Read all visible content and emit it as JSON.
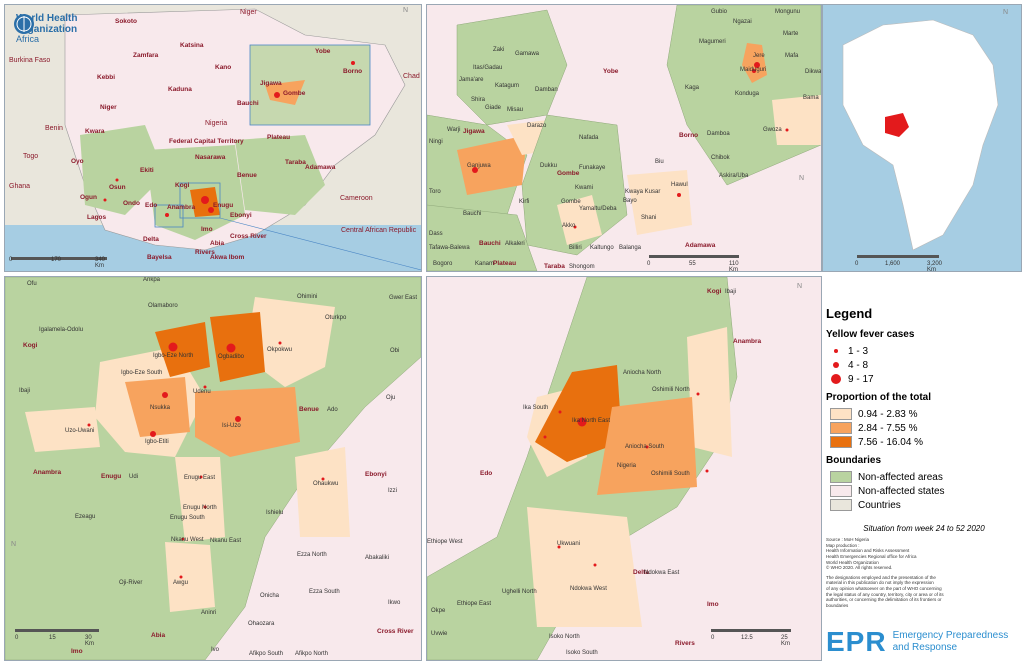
{
  "header": {
    "org_line1": "World Health",
    "org_line2": "Organization",
    "org_region": "Africa",
    "org_sub": "REGIONAL OFFICE FOR Africa"
  },
  "panel1": {
    "labels": [
      "Niger",
      "Burkina Faso",
      "Chad",
      "Benin",
      "Togo",
      "Ghana",
      "Nigeria",
      "Cameroon",
      "Central African Republic",
      "Sokoto",
      "Zamfara",
      "Katsina",
      "Kano",
      "Jigawa",
      "Yobe",
      "Borno",
      "Kebbi",
      "Kaduna",
      "Bauchi",
      "Gombe",
      "Plateau",
      "Federal Capital Territory",
      "Nasarawa",
      "Taraba",
      "Adamawa",
      "Kwara",
      "Niger",
      "Oyo",
      "Osun",
      "Ekiti",
      "Kogi",
      "Benue",
      "Ogun",
      "Ondo",
      "Edo",
      "Lagos",
      "Delta",
      "Anambra",
      "Enugu",
      "Ebonyi",
      "Imo",
      "Cross River",
      "Rivers",
      "Akwa Ibom",
      "Bayelsa",
      "Abia"
    ],
    "scale": [
      "0",
      "170",
      "340 Km"
    ]
  },
  "panel2": {
    "labels": [
      "Gubio",
      "Mongunu",
      "Ngazai",
      "Magumeri",
      "Marte",
      "Mafa",
      "Jere",
      "Maiduguri",
      "Dikwa",
      "Kaga",
      "Konduga",
      "Bama",
      "Gwoza",
      "Damboa",
      "Chibok",
      "Askira/Uba",
      "Biu",
      "Hawul",
      "Kwaya Kusar",
      "Bayo",
      "Shani",
      "Zaki",
      "Gamawa",
      "Itas/Gadau",
      "Jama'are",
      "Katagum",
      "Shira",
      "Giade",
      "Misau",
      "Damban",
      "Darazo",
      "Warji",
      "Ningi",
      "Ganjuwa",
      "Dukku",
      "Nafada",
      "Funakaye",
      "Kwami",
      "Gombe",
      "Yamaltu/Deba",
      "Akko",
      "Billiri",
      "Kaltungo",
      "Balanga",
      "Shongom",
      "Kirfi",
      "Alkaleri",
      "Bauchi",
      "Toro",
      "Dass",
      "Tafawa-Balewa",
      "Bogoro",
      "Kanam",
      "Yobe",
      "Borno",
      "Jigawa",
      "Bauchi",
      "Gombe",
      "Adamawa",
      "Plateau",
      "Taraba"
    ],
    "scale": [
      "0",
      "55",
      "110 Km"
    ]
  },
  "panel4": {
    "labels": [
      "Ofu",
      "Ankpa",
      "Olamaboro",
      "Ohimini",
      "Gwer East",
      "Igalamela-Odolu",
      "Oturkpo",
      "Kogi",
      "Obi",
      "Igbo-Eze North",
      "Ogbadibo",
      "Okpokwu",
      "Ibaji",
      "Igbo-Eze South",
      "Udenu",
      "Oju",
      "Nsukka",
      "Benue",
      "Ado",
      "Uzo-Uwani",
      "Igbo-Etiti",
      "Isi-Uzo",
      "Anambra",
      "Enugu",
      "Udi",
      "Enugu East",
      "Ohaukwu",
      "Ebonyi",
      "Izzi",
      "Ezeagu",
      "Enugu North",
      "Enugu South",
      "Ishielu",
      "Nkanu West",
      "Nkanu East",
      "Ezza North",
      "Abakaliki",
      "Oji-River",
      "Awgu",
      "Ezza South",
      "Ikwo",
      "Aninri",
      "Onicha",
      "Ohaozara",
      "Abia",
      "Cross River",
      "Imo",
      "Ivo",
      "Afikpo South",
      "Afikpo North"
    ],
    "scale": [
      "0",
      "15",
      "30 Km"
    ]
  },
  "panel5": {
    "labels": [
      "Kogi",
      "Ibaji",
      "Anambra",
      "Aniocha North",
      "Oshimili North",
      "Ika South",
      "Ika North East",
      "Aniocha South",
      "Edo",
      "Nigeria",
      "Oshimili South",
      "Ethiope West",
      "Ukwuani",
      "Ndokwa West",
      "Delta",
      "Ndokwa East",
      "Ughelli North",
      "Ethiope East",
      "Okpe",
      "Uvwie",
      "Isoko North",
      "Isoko South",
      "Imo",
      "Rivers"
    ],
    "scale": [
      "0",
      "12.5",
      "25 Km"
    ]
  },
  "panel3": {
    "scale": [
      "0",
      "1,600",
      "3,200 Km"
    ]
  },
  "legend": {
    "title": "Legend",
    "cases_title": "Yellow fever cases",
    "cases": [
      "1 - 3",
      "4 - 8",
      "9 - 17"
    ],
    "prop_title": "Proportion of the total",
    "props": [
      {
        "label": "0.94 - 2.83 %",
        "color": "#fde2c5"
      },
      {
        "label": "2.84 - 7.55 %",
        "color": "#f7a35e"
      },
      {
        "label": "7.56 - 16.04 %",
        "color": "#e8700e"
      }
    ],
    "bound_title": "Boundaries",
    "bounds": [
      {
        "label": "Non-affected areas",
        "color": "#b9d3a0"
      },
      {
        "label": "Non-affected states",
        "color": "#f8e9ec"
      },
      {
        "label": "Countries",
        "color": "#e9e6dc"
      }
    ],
    "situation": "Situation from week 24 to 52 2020",
    "production": "Source : MoH Nigeria\nMap production :\nHealth Information and Risks Assessment\nHealth Emergencies Regional office for Africa\nWorld Health Organization\n© WHO 2020. All rights reserved.",
    "disclaimer": "The designations employed and the presentation of the\nmaterial in this publication do not imply the expression\nof any opinion whatsoever on the part of WHO concerning\nthe legal status of any country, territory, city or area or of its\nauthorities, or concerning the delimitation of its frontiers or\nboundaries"
  },
  "footer": {
    "epr": "EPR",
    "epr_line1": "Emergency Preparedness",
    "epr_line2": "and Response"
  },
  "colors": {
    "affected_light": "#fde2c5",
    "affected_mid": "#f7a35e",
    "affected_dark": "#e8700e",
    "non_affected": "#b9d3a0",
    "non_affected_states": "#f8e9ec",
    "countries": "#e9e6dc",
    "case_dot": "#e31a1c",
    "water": "#a6cde3",
    "epr": "#2b8ecf"
  }
}
